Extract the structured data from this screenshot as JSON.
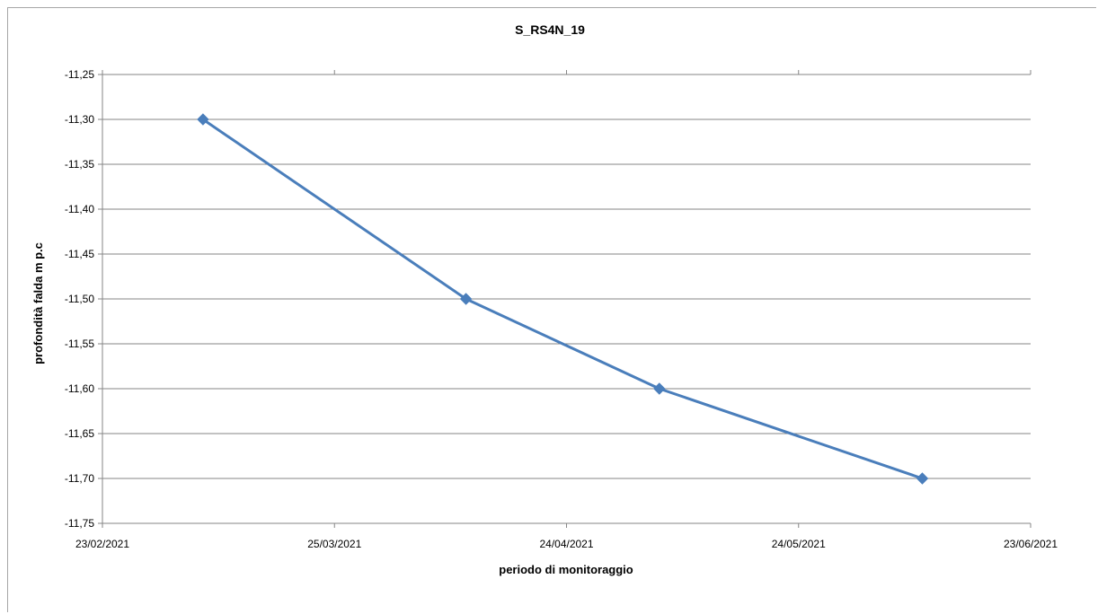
{
  "chart_data": {
    "type": "line",
    "title": "S_RS4N_19",
    "xlabel": "periodo di monitoraggio",
    "ylabel": "profondità falda m p.c",
    "x_ticks": [
      "23/02/2021",
      "25/03/2021",
      "24/04/2021",
      "24/05/2021",
      "23/06/2021"
    ],
    "y_ticks": [
      "-11,25",
      "-11,30",
      "-11,35",
      "-11,40",
      "-11,45",
      "-11,50",
      "-11,55",
      "-11,60",
      "-11,65",
      "-11,70",
      "-11,75"
    ],
    "ylim": [
      -11.75,
      -11.25
    ],
    "xlim": [
      "2021-02-23",
      "2021-06-23"
    ],
    "series": [
      {
        "x": [
          "2021-03-08",
          "2021-04-11",
          "2021-05-06",
          "2021-06-09"
        ],
        "y": [
          -11.3,
          -11.5,
          -11.6,
          -11.7
        ],
        "color": "#4a7ebb",
        "marker": "diamond"
      }
    ],
    "grid": true,
    "legend": "none",
    "gridline_color": "#868686",
    "axis_color": "#868686"
  }
}
